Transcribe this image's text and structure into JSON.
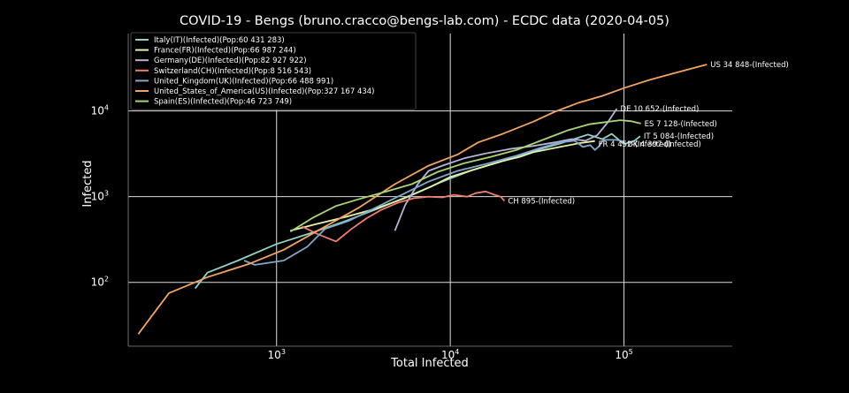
{
  "chart_data": {
    "type": "line",
    "title": "COVID-19 - Bengs (bruno.cracco@bengs-lab.com) - ECDC data  (2020-04-05)",
    "xlabel": "Total Infected",
    "ylabel": "Infected",
    "x_scale": "log",
    "y_scale": "log",
    "xlim": [
      140,
      420000
    ],
    "ylim": [
      18,
      80000
    ],
    "grid": true,
    "legend_position": "upper-left",
    "x_ticks": [
      {
        "base": "10",
        "exp": "3"
      },
      {
        "base": "10",
        "exp": "4"
      },
      {
        "base": "10",
        "exp": "5"
      }
    ],
    "y_ticks": [
      {
        "base": "10",
        "exp": "2"
      },
      {
        "base": "10",
        "exp": "3"
      },
      {
        "base": "10",
        "exp": "4"
      }
    ],
    "series": [
      {
        "name": "Italy(IT)(Infected)(Pop:60 431 283)",
        "color": "#8fd3c8",
        "annotation": "IT 5 084-(Infected)",
        "points": [
          [
            340,
            85
          ],
          [
            400,
            130
          ],
          [
            600,
            180
          ],
          [
            1000,
            280
          ],
          [
            1600,
            380
          ],
          [
            2500,
            520
          ],
          [
            4000,
            750
          ],
          [
            6000,
            1050
          ],
          [
            9000,
            1500
          ],
          [
            13000,
            2000
          ],
          [
            20000,
            2600
          ],
          [
            30000,
            3400
          ],
          [
            45000,
            4300
          ],
          [
            62000,
            5300
          ],
          [
            75000,
            4700
          ],
          [
            85000,
            5400
          ],
          [
            100000,
            4100
          ],
          [
            115000,
            4500
          ],
          [
            124000,
            5084
          ]
        ]
      },
      {
        "name": "France(FR)(Infected)(Pop:66 987 244)",
        "color": "#e6f2a6",
        "annotation": "FR 4 452-(Infected)",
        "points": [
          [
            1200,
            400
          ],
          [
            1700,
            480
          ],
          [
            2500,
            580
          ],
          [
            3700,
            720
          ],
          [
            5400,
            950
          ],
          [
            7700,
            1300
          ],
          [
            10000,
            1700
          ],
          [
            14000,
            2100
          ],
          [
            20000,
            2600
          ],
          [
            25000,
            2900
          ],
          [
            30000,
            3300
          ],
          [
            40000,
            3700
          ],
          [
            55000,
            4200
          ],
          [
            68000,
            4452
          ]
        ]
      },
      {
        "name": "Germany(DE)(Infected)(Pop:82 927 922)",
        "color": "#b7b2d8",
        "annotation": "DE 10 652-(Infected)",
        "points": [
          [
            4800,
            400
          ],
          [
            5500,
            800
          ],
          [
            6500,
            1400
          ],
          [
            7500,
            2000
          ],
          [
            9000,
            2300
          ],
          [
            12000,
            2800
          ],
          [
            16000,
            3200
          ],
          [
            22000,
            3600
          ],
          [
            30000,
            3900
          ],
          [
            40000,
            4300
          ],
          [
            50000,
            4700
          ],
          [
            60000,
            4500
          ],
          [
            70000,
            5200
          ],
          [
            80000,
            7200
          ],
          [
            91000,
            10652
          ]
        ]
      },
      {
        "name": "Switzerland(CH)(Infected)(Pop:8 516 543)",
        "color": "#f07e6e",
        "annotation": "CH 895-(Infected)",
        "points": [
          [
            1400,
            450
          ],
          [
            1700,
            370
          ],
          [
            2200,
            300
          ],
          [
            2700,
            420
          ],
          [
            3300,
            560
          ],
          [
            4000,
            700
          ],
          [
            5000,
            850
          ],
          [
            6200,
            960
          ],
          [
            7500,
            1000
          ],
          [
            9000,
            980
          ],
          [
            10500,
            1050
          ],
          [
            12500,
            1000
          ],
          [
            14000,
            1100
          ],
          [
            16000,
            1150
          ],
          [
            18000,
            1050
          ],
          [
            19500,
            1000
          ],
          [
            20500,
            895
          ]
        ]
      },
      {
        "name": "United_Kingdom(UK)(Infected)(Pop:66 488 991)",
        "color": "#80a9cc",
        "annotation": "UK 4 397-(Infected)",
        "points": [
          [
            650,
            180
          ],
          [
            750,
            160
          ],
          [
            1100,
            180
          ],
          [
            1500,
            260
          ],
          [
            1900,
            420
          ],
          [
            2600,
            520
          ],
          [
            3500,
            700
          ],
          [
            5000,
            1000
          ],
          [
            7500,
            1500
          ],
          [
            11000,
            2000
          ],
          [
            16000,
            2400
          ],
          [
            24000,
            3000
          ],
          [
            33000,
            3700
          ],
          [
            43000,
            4300
          ],
          [
            52000,
            4500
          ],
          [
            58000,
            3800
          ],
          [
            64000,
            4000
          ],
          [
            68000,
            3500
          ],
          [
            72000,
            3900
          ],
          [
            76000,
            4600
          ],
          [
            90000,
            4600
          ],
          [
            100000,
            4397
          ]
        ]
      },
      {
        "name": "United_States_of_America(US)(Infected)(Pop:327 167 434)",
        "color": "#f3a55f",
        "annotation": "US 34 848-(Infected)",
        "points": [
          [
            160,
            25
          ],
          [
            240,
            75
          ],
          [
            400,
            115
          ],
          [
            700,
            165
          ],
          [
            1100,
            240
          ],
          [
            1800,
            420
          ],
          [
            3000,
            750
          ],
          [
            4800,
            1400
          ],
          [
            7500,
            2300
          ],
          [
            11000,
            3100
          ],
          [
            14500,
            4300
          ],
          [
            20000,
            5400
          ],
          [
            30000,
            7500
          ],
          [
            40000,
            9800
          ],
          [
            55000,
            12500
          ],
          [
            75000,
            15000
          ],
          [
            100000,
            18500
          ],
          [
            140000,
            23000
          ],
          [
            200000,
            28000
          ],
          [
            300000,
            34848
          ]
        ]
      },
      {
        "name": "Spain(ES)(Infected)(Pop:46 723 749)",
        "color": "#a8d672",
        "annotation": "ES 7 128-(Infected)",
        "points": [
          [
            1200,
            390
          ],
          [
            1600,
            560
          ],
          [
            2200,
            780
          ],
          [
            3000,
            940
          ],
          [
            4300,
            1150
          ],
          [
            6000,
            1400
          ],
          [
            8500,
            1950
          ],
          [
            12000,
            2450
          ],
          [
            17000,
            2900
          ],
          [
            24000,
            3500
          ],
          [
            35000,
            4700
          ],
          [
            48000,
            6000
          ],
          [
            63000,
            7000
          ],
          [
            78000,
            7400
          ],
          [
            95000,
            7800
          ],
          [
            110000,
            7600
          ],
          [
            125000,
            7128
          ]
        ]
      }
    ],
    "annotation_y": {
      "US 34 848-(Infected)": 34848,
      "DE 10 652-(Infected)": 10652,
      "ES 7 128-(Infected)": 7128,
      "IT 5 084-(Infected)": 5084,
      "UK 4 397-(Infected)": 4100,
      "FR 4 452-(Infected)": 4100,
      "CH 895-(Infected)": 895
    }
  }
}
